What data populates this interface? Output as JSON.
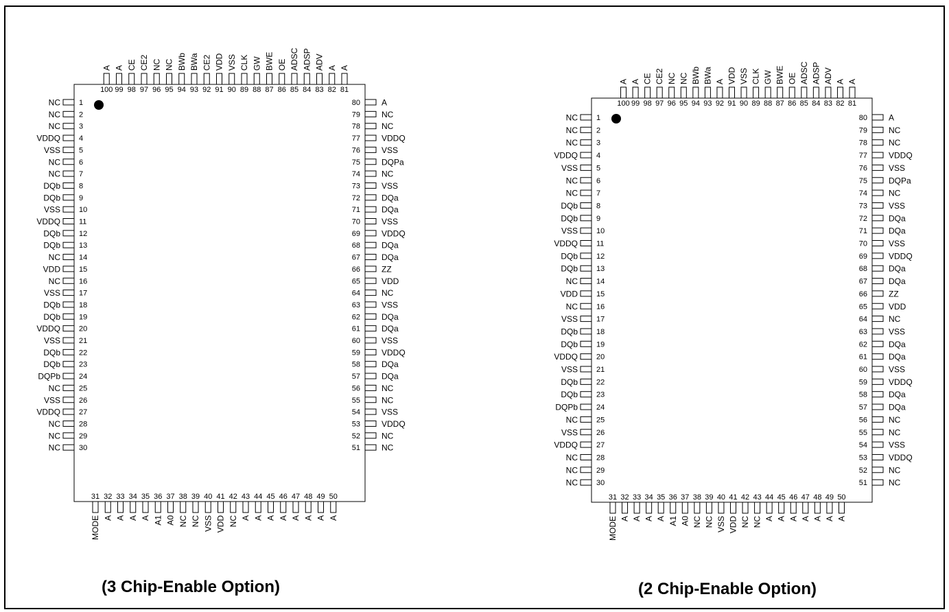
{
  "diagrams": [
    {
      "caption": "(3 Chip-Enable Option)",
      "left_pins": [
        "NC",
        "NC",
        "NC",
        "VDDQ",
        "VSS",
        "NC",
        "NC",
        "DQb",
        "DQb",
        "VSS",
        "VDDQ",
        "DQb",
        "DQb",
        "NC",
        "VDD",
        "NC",
        "VSS",
        "DQb",
        "DQb",
        "VDDQ",
        "VSS",
        "DQb",
        "DQb",
        "DQPb",
        "NC",
        "VSS",
        "VDDQ",
        "NC",
        "NC",
        "NC"
      ],
      "bottom_pins": [
        "MODE",
        "A",
        "A",
        "A",
        "A",
        "A1",
        "A0",
        "NC",
        "NC",
        "VSS",
        "VDD",
        "NC",
        "A",
        "A",
        "A",
        "A",
        "A",
        "A",
        "A",
        "A"
      ],
      "right_pins": [
        "NC",
        "NC",
        "VDDQ",
        "VSS",
        "NC",
        "NC",
        "DQa",
        "DQa",
        "VDDQ",
        "VSS",
        "DQa",
        "DQa",
        "VSS",
        "NC",
        "VDD",
        "ZZ",
        "DQa",
        "DQa",
        "VDDQ",
        "VSS",
        "DQa",
        "DQa",
        "VSS",
        "NC",
        "DQPa",
        "VSS",
        "VDDQ",
        "NC",
        "NC",
        "A"
      ],
      "top_pins": [
        "A",
        "A",
        "ADV",
        "ADSP",
        "ADSC",
        "OE",
        "BWE",
        "GW",
        "CLK",
        "VSS",
        "VDD",
        "CE2",
        "BWa",
        "BWb",
        "NC",
        "NC",
        "CE2",
        "CE",
        "A",
        "A"
      ],
      "top_overlined": [
        3,
        4,
        5,
        6,
        7,
        8,
        12,
        13,
        14,
        16,
        17
      ]
    },
    {
      "caption": "(2 Chip-Enable Option)",
      "left_pins": [
        "NC",
        "NC",
        "NC",
        "VDDQ",
        "VSS",
        "NC",
        "NC",
        "DQb",
        "DQb",
        "VSS",
        "VDDQ",
        "DQb",
        "DQb",
        "NC",
        "VDD",
        "NC",
        "VSS",
        "DQb",
        "DQb",
        "VDDQ",
        "VSS",
        "DQb",
        "DQb",
        "DQPb",
        "NC",
        "VSS",
        "VDDQ",
        "NC",
        "NC",
        "NC"
      ],
      "bottom_pins": [
        "MODE",
        "A",
        "A",
        "A",
        "A",
        "A1",
        "A0",
        "NC",
        "NC",
        "VSS",
        "VDD",
        "NC",
        "NC",
        "A",
        "A",
        "A",
        "A",
        "A",
        "A",
        "A"
      ],
      "right_pins": [
        "NC",
        "NC",
        "VDDQ",
        "VSS",
        "NC",
        "NC",
        "DQa",
        "DQa",
        "VDDQ",
        "VSS",
        "DQa",
        "DQa",
        "VSS",
        "NC",
        "VDD",
        "ZZ",
        "DQa",
        "DQa",
        "VDDQ",
        "VSS",
        "DQa",
        "DQa",
        "VSS",
        "NC",
        "DQPa",
        "VSS",
        "VDDQ",
        "NC",
        "NC",
        "A"
      ],
      "top_pins": [
        "A",
        "A",
        "ADV",
        "ADSP",
        "ADSC",
        "OE",
        "BWE",
        "GW",
        "CLK",
        "VSS",
        "VDD",
        "A",
        "BWa",
        "BWb",
        "NC",
        "NC",
        "CE2",
        "CE",
        "A",
        "A"
      ],
      "top_overlined": [
        3,
        4,
        5,
        6,
        7,
        8,
        13,
        14,
        18
      ]
    }
  ]
}
